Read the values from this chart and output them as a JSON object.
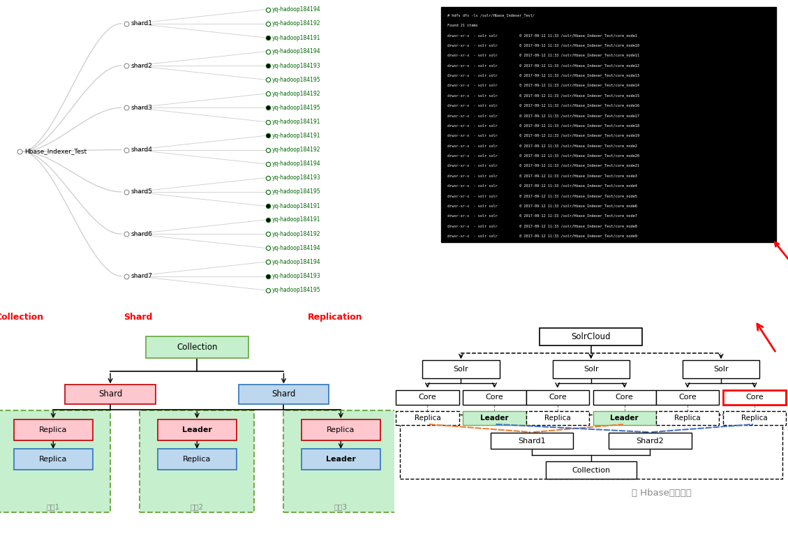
{
  "bg_color": "#ffffff",
  "top_left": {
    "collection": "Hbase_Indexer_Test",
    "shards": [
      "shard1",
      "shard2",
      "shard3",
      "shard4",
      "shard5",
      "shard6",
      "shard7"
    ],
    "replications": {
      "shard1": [
        {
          "name": "yq-hadoop184194",
          "leader": false
        },
        {
          "name": "yq-hadoop184192",
          "leader": false
        },
        {
          "name": "yq-hadoop184191",
          "leader": true
        }
      ],
      "shard2": [
        {
          "name": "yq-hadoop184194",
          "leader": false
        },
        {
          "name": "yq-hadoop184193",
          "leader": true
        },
        {
          "name": "yq-hadoop184195",
          "leader": false
        }
      ],
      "shard3": [
        {
          "name": "yq-hadoop184192",
          "leader": false
        },
        {
          "name": "yq-hadoop184195",
          "leader": true
        },
        {
          "name": "yq-hadoop184191",
          "leader": false
        }
      ],
      "shard4": [
        {
          "name": "yq-hadoop184191",
          "leader": true
        },
        {
          "name": "yq-hadoop184192",
          "leader": false
        },
        {
          "name": "yq-hadoop184194",
          "leader": false
        }
      ],
      "shard5": [
        {
          "name": "yq-hadoop184193",
          "leader": false
        },
        {
          "name": "yq-hadoop184195",
          "leader": false
        },
        {
          "name": "yq-hadoop184191",
          "leader": true
        }
      ],
      "shard6": [
        {
          "name": "yq-hadoop184191",
          "leader": true
        },
        {
          "name": "yq-hadoop184192",
          "leader": false
        },
        {
          "name": "yq-hadoop184194",
          "leader": false
        }
      ],
      "shard7": [
        {
          "name": "yq-hadoop184194",
          "leader": false
        },
        {
          "name": "yq-hadoop184193",
          "leader": true
        },
        {
          "name": "yq-hadoop184195",
          "leader": false
        }
      ]
    },
    "label_collection": "Collection",
    "label_shard": "Shard",
    "label_replication": "Replication"
  },
  "top_right": {
    "terminal_lines": [
      "# hdfs dfs -ls /solr/Hbase_Indexer_Test/",
      "Found 21 items",
      "drwxr-xr-x  - solr solr          0 2017-09-12 11:33 /solr/Hbase_Indexer_Test/core_node1",
      "drwxr-xr-x  - solr solr          0 2017-09-12 11:33 /solr/Hbase_Indexer_Test/core_node10",
      "drwxr-xr-x  - solr solr          0 2017-09-12 11:33 /solr/Hbase_Indexer_Test/core_node11",
      "drwxr-xr-x  - solr solr          0 2017-09-12 11:33 /solr/Hbase_Indexer_Test/core_node12",
      "drwxr-xr-x  - solr solr          0 2017-09-12 11:33 /solr/Hbase_Indexer_Test/core_node13",
      "drwxr-xr-x  - solr solr          0 2017-09-12 11:33 /solr/Hbase_Indexer_Test/core_node14",
      "drwxr-xr-x  - solr solr          0 2017-09-12 11:33 /solr/Hbase_Indexer_Test/core_node15",
      "drwxr-xr-x  - solr solr          0 2017-09-12 11:33 /solr/Hbase_Indexer_Test/core_node16",
      "drwxr-xr-x  - solr solr          0 2017-09-12 11:33 /solr/Hbase_Indexer_Test/core_node17",
      "drwxr-xr-x  - solr solr          0 2017-09-12 11:33 /solr/Hbase_Indexer_Test/core_node18",
      "drwxr-xr-x  - solr solr          0 2017-09-12 11:33 /solr/Hbase_Indexer_Test/core_node19",
      "drwxr-xr-x  - solr solr          0 2017-09-12 11:33 /solr/Hbase_Indexer_Test/core_node2",
      "drwxr-xr-x  - solr solr          0 2017-09-12 11:33 /solr/Hbase_Indexer_Test/core_node20",
      "drwxr-xr-x  - solr solr          0 2017-09-12 11:33 /solr/Hbase_Indexer_Test/core_node21",
      "drwxr-xr-x  - solr solr          0 2017-09-12 11:33 /solr/Hbase_Indexer_Test/core_node3",
      "drwxr-xr-x  - solr solr          0 2017-09-12 11:33 /solr/Hbase_Indexer_Test/core_node4",
      "drwxr-xr-x  - solr solr          0 2017-09-12 11:33 /solr/Hbase_Indexer_Test/core_node5",
      "drwxr-xr-x  - solr solr          0 2017-09-12 11:33 /solr/Hbase_Indexer_Test/core_node6",
      "drwxr-xr-x  - solr solr          0 2017-09-12 11:33 /solr/Hbase_Indexer_Test/core_node7",
      "drwxr-xr-x  - solr solr          0 2017-09-12 11:33 /solr/Hbase_Indexer_Test/core_node8",
      "drwxr-xr-x  - solr solr          0 2017-09-12 11:33 /solr/Hbase_Indexer_Test/core_node9"
    ]
  },
  "watermark": "Hbase工作笔记",
  "colors": {
    "green_light": "#c6efce",
    "green_border": "#70ad47",
    "red_light": "#ffc7ce",
    "red_border": "#c00000",
    "blue_light": "#bdd7ee",
    "blue_border": "#2e75b6",
    "label_red": "#ff0000",
    "line_color": "#cccccc",
    "orange_dashed": "#ed7d31",
    "blue_dashed": "#4472c4",
    "dark_gray": "#404040"
  }
}
